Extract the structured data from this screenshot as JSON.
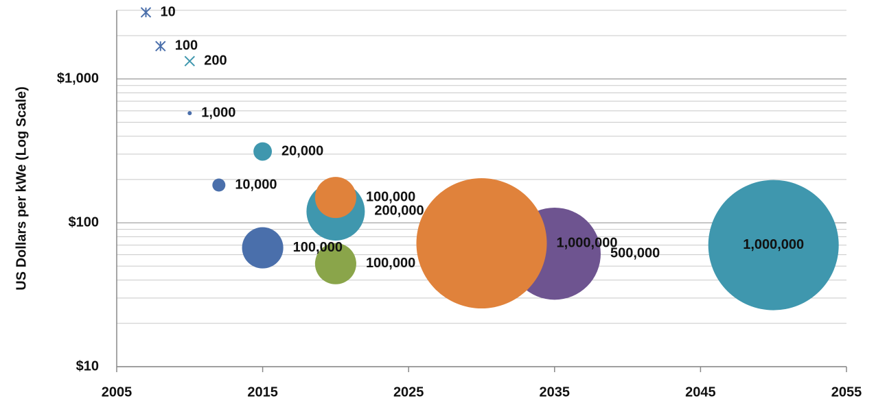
{
  "chart_data": {
    "type": "bubble",
    "y_label": "US Dollars per kWe (Log Scale)",
    "log_y": true,
    "grid": true,
    "xlim": [
      2005,
      2055
    ],
    "xticks": [
      2005,
      2015,
      2025,
      2035,
      2045,
      2055
    ],
    "ylim": [
      10,
      3000
    ],
    "yticks": [
      {
        "value": 10,
        "label": "$10"
      },
      {
        "value": 100,
        "label": "$100"
      },
      {
        "value": 1000,
        "label": "$1,000"
      }
    ],
    "yminorticks": [
      20,
      30,
      40,
      50,
      60,
      70,
      80,
      90,
      200,
      300,
      400,
      500,
      600,
      700,
      800,
      900,
      2000,
      3000
    ],
    "x": [
      2035,
      2030,
      2050,
      2020,
      2020,
      2020,
      2015,
      2012,
      2015,
      2010,
      2010,
      2008,
      2007
    ],
    "values": [
      61,
      72,
      70,
      52,
      120,
      150,
      67,
      183,
      313,
      578,
      1330,
      1690,
      2900
    ],
    "sizes": [
      500000,
      1000000,
      1000000,
      100000,
      200000,
      100000,
      100000,
      10000,
      20000,
      1000,
      200,
      100,
      10
    ],
    "size_labels": [
      "500,000",
      "1,000,000",
      "1,000,000",
      "100,000",
      "200,000",
      "100,000",
      "100,000",
      "10,000",
      "20,000",
      "1,000",
      "200",
      "100",
      "10"
    ],
    "colors": [
      "#6e5490",
      "#e0823b",
      "#3f97ae",
      "#8aa54a",
      "#3f97ae",
      "#e0823b",
      "#4a6fab",
      "#4a6fab",
      "#3f97ae",
      "#4a6fab",
      "#3f97ae",
      "#4a6fab",
      "#4a6fab"
    ],
    "markers": [
      "circle",
      "circle",
      "circle",
      "circle",
      "circle",
      "circle",
      "circle",
      "circle",
      "circle",
      "circle",
      "x",
      "star",
      "star"
    ]
  }
}
